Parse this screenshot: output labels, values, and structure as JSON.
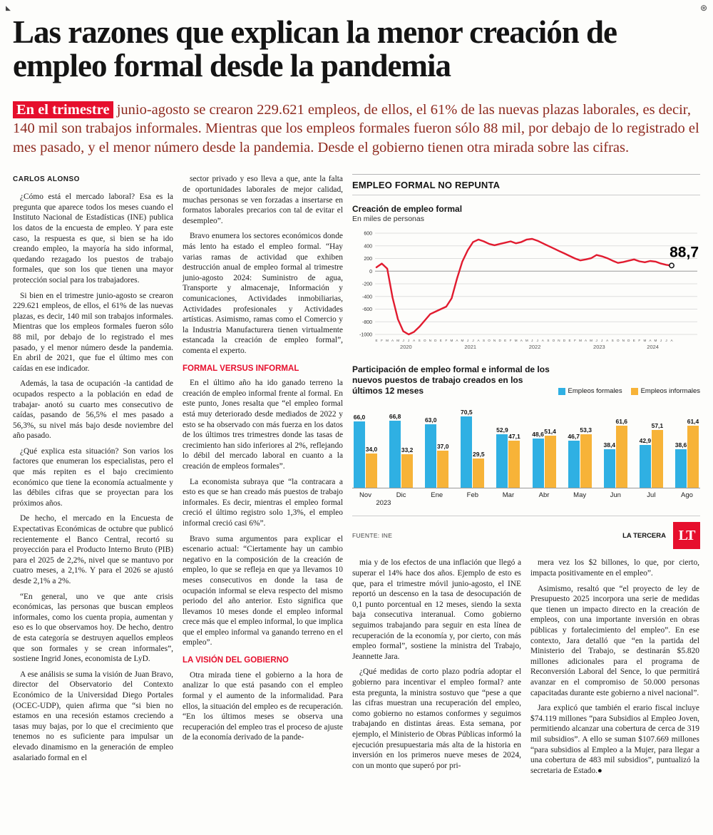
{
  "marks": {
    "left": "◣",
    "right": "⊛"
  },
  "headline": "Las razones que explican la menor creación de empleo formal desde la pandemia",
  "lead": {
    "highlight": "En el trimestre",
    "rest": " junio-agosto se crearon 229.621 empleos, de ellos, el 61% de las nuevas plazas laborales, es decir, 140 mil son trabajos informales. Mientras que los empleos formales fueron sólo 88 mil, por debajo de lo registrado el mes pasado, y el menor número desde la pandemia.  Desde el gobierno tienen otra mirada sobre las cifras."
  },
  "byline": "CARLOS ALONSO",
  "article": {
    "col1": [
      {
        "t": "p",
        "x": "¿Cómo está el mercado laboral? Esa es la pregunta que aparece todos los meses cuando el Instituto Nacional de Estadísticas (INE) publica los datos de la encuesta de empleo. Y para este caso, la respuesta es que, si bien se ha ido creando empleo, la mayoría ha sido informal, quedando rezagado los puestos de trabajo formales, que son los que tienen una mayor protección social para los trabajadores."
      },
      {
        "t": "p",
        "x": "Si bien en el trimestre junio-agosto se crearon 229.621 empleos, de ellos, el 61% de las nuevas plazas, es decir, 140 mil son trabajos informales. Mientras que los empleos formales fueron sólo 88 mil, por debajo de lo registrado el mes pasado, y el menor número desde la pandemia. En abril de 2021, que fue el último mes con caídas en ese indicador."
      },
      {
        "t": "p",
        "x": "Además, la tasa de ocupación -la cantidad de ocupados respecto a la población en edad de trabajar- anotó su cuarto mes consecutivo de caídas, pasando de 56,5% el mes pasado a 56,3%, su nivel más bajo desde noviembre del año pasado."
      },
      {
        "t": "p",
        "x": "¿Qué explica esta situación? Son varios los factores que enumeran los especialistas, pero el que más repiten es el bajo crecimiento económico que tiene la economía actualmente y las débiles cifras que se proyectan para los próximos años."
      },
      {
        "t": "p",
        "x": "De hecho, el mercado en la Encuesta de Expectativas Económicas de octubre que publicó recientemente el Banco Central, recortó su proyección para el Producto Interno Bruto (PIB) para el 2025 de 2,2%, nivel que se mantuvo por cuatro meses, a 2,1%. Y para el 2026 se ajustó desde 2,1% a 2%."
      },
      {
        "t": "p",
        "x": "“En general, uno ve que ante crisis económicas, las personas que buscan empleos informales, como los cuenta propia, aumentan y eso es lo que observamos hoy. De hecho, dentro de esta categoría se destruyen aquellos empleos que son formales y se crean informales”, sostiene Ingrid Jones, economista de LyD."
      },
      {
        "t": "p",
        "x": "A ese análisis se suma la visión de Juan Bravo, director del Observatorio del Contexto Económico de la Universidad Diego Portales (OCEC-UDP), quien afirma que “si bien no estamos en una recesión estamos creciendo a tasas muy bajas, por lo que el crecimiento que tenemos no es suficiente para impulsar un elevado dinamismo en la generación de empleo asalariado formal en el"
      }
    ],
    "col2": [
      {
        "t": "p",
        "x": "sector privado y eso lleva a que, ante la falta de oportunidades laborales de mejor calidad, muchas personas se ven forzadas a insertarse en formatos laborales precarios con tal de evitar el desempleo”."
      },
      {
        "t": "p",
        "x": "Bravo enumera los sectores económicos donde más lento ha estado el empleo formal. “Hay varias ramas de actividad que exhiben destrucción anual de empleo formal al trimestre junio-agosto 2024: Suministro de agua, Transporte y almacenaje, Información y comunicaciones, Actividades inmobiliarias, Actividades profesionales y Actividades artísticas. Asimismo, ramas como el Comercio y la Industria Manufacturera tienen virtualmente estancada la creación de empleo formal”, comenta el experto."
      },
      {
        "t": "h",
        "x": "FORMAL VERSUS INFORMAL"
      },
      {
        "t": "p",
        "x": "En el último año ha ido ganado terreno la creación de empleo informal frente al formal. En este punto, Jones resalta que “el empleo formal está muy deteriorado desde mediados de 2022 y esto se ha observado con más fuerza en los datos de los últimos tres trimestres donde las tasas de crecimiento han sido inferiores al 2%, reflejando lo débil del mercado laboral en cuanto a la creación de empleos formales”."
      },
      {
        "t": "p",
        "x": "La economista subraya que “la contracara a esto es que se han creado más puestos de trabajo informales. Es decir, mientras el empleo formal creció el último registro solo 1,3%, el empleo informal creció casi 6%”."
      },
      {
        "t": "p",
        "x": "Bravo suma argumentos para explicar el escenario actual: “Ciertamente hay un cambio negativo en la composición de la creación de empleo, lo que se refleja en que ya llevamos 10 meses consecutivos en donde la tasa de ocupación informal se eleva respecto del mismo periodo del año anterior. Esto significa que llevamos 10 meses donde el empleo informal crece más que el empleo informal, lo que implica que el empleo informal va ganando terreno en el empleo”."
      },
      {
        "t": "h",
        "x": "LA VISIÓN DEL GOBIERNO"
      },
      {
        "t": "p",
        "x": "Otra mirada tiene el gobierno a la hora de analizar lo que está pasando con el empleo formal y el aumento de la informalidad. Para ellos, la situación del empleo es de recuperación. “En los últimos meses se observa una recuperación del empleo tras el proceso de ajuste de la economía derivado de la pande-"
      }
    ],
    "col3": [
      {
        "t": "p",
        "x": "mia y de los efectos de una inflación que llegó a superar el 14% hace dos años. Ejemplo de esto es que, para el trimestre móvil junio-agosto, el INE reportó un descenso en la tasa de desocupación de 0,1 punto porcentual en 12 meses, siendo la sexta baja consecutiva interanual. Como gobierno seguimos trabajando para seguir en esta línea de recuperación de la economía y, por cierto, con más empleo formal”, sostiene la ministra del Trabajo, Jeannette Jara."
      },
      {
        "t": "p",
        "x": "¿Qué medidas de corto plazo podría adoptar el gobierno para incentivar el empleo formal? ante esta pregunta, la ministra sostuvo que “pese a que las cifras muestran una recuperación del empleo, como gobierno no estamos conformes y seguimos trabajando en distintas áreas. Esta semana, por ejemplo, el Ministerio de Obras Públicas informó la ejecución presupuestaria más alta de la historia en inversión en los primeros nueve meses de 2024, con un monto que superó por pri-"
      }
    ],
    "col4": [
      {
        "t": "p",
        "x": "mera vez los $2 billones, lo que, por cierto, impacta positivamente en el empleo”."
      },
      {
        "t": "p",
        "x": "Asimismo, resaltó que “el proyecto de ley de Presupuesto 2025 incorpora una serie de medidas que tienen un impacto directo en la creación de empleos, con una importante inversión en obras públicas y fortalecimiento del empleo”. En ese contexto, Jara detalló que “en la partida del Ministerio del Trabajo, se destinarán $5.820 millones adicionales para el programa de Reconversión Laboral del Sence, lo que permitirá avanzar en el compromiso de 50.000 personas capacitadas durante este gobierno a nivel nacional”."
      },
      {
        "t": "p",
        "x": "Jara explicó que también el erario fiscal incluye $74.119 millones “para Subsidios al Empleo Joven, permitiendo alcanzar una cobertura de cerca de 319 mil subsidios”. A ello se suman $107.669 millones “para subsidios al Empleo a la Mujer, para llegar a una cobertura de 483 mil subsidios”, puntualizó la secretaria de Estado.●"
      }
    ]
  },
  "panel": {
    "section_title": "EMPLEO FORMAL NO REPUNTA",
    "footer": {
      "source": "FUENTE:  INE",
      "credit": "LA TERCERA",
      "logo": "LT"
    }
  },
  "chart_data": [
    {
      "type": "line",
      "title": "Creación de empleo formal",
      "subtitle": "En miles de personas",
      "line_color": "#e11b2f",
      "ylim": [
        -1000,
        600
      ],
      "yticks": [
        600,
        400,
        200,
        0,
        -200,
        -400,
        -600,
        -800,
        -1000
      ],
      "x_groups": [
        {
          "year": "2020",
          "months": "EFMAMJJASOND"
        },
        {
          "year": "2021",
          "months": "EFMAMJJASOND"
        },
        {
          "year": "2022",
          "months": "EFMAMJJASOND"
        },
        {
          "year": "2023",
          "months": "EFMAMJJASOND"
        },
        {
          "year": "2024",
          "months": "EFMAMJJA"
        }
      ],
      "values": [
        60,
        120,
        40,
        -420,
        -760,
        -950,
        -1000,
        -960,
        -880,
        -780,
        -680,
        -640,
        -600,
        -560,
        -430,
        -120,
        150,
        330,
        460,
        500,
        470,
        430,
        410,
        430,
        450,
        470,
        440,
        460,
        500,
        510,
        480,
        440,
        400,
        360,
        320,
        280,
        240,
        200,
        170,
        185,
        205,
        255,
        235,
        205,
        165,
        130,
        145,
        165,
        185,
        155,
        140,
        160,
        150,
        120,
        100,
        88.7
      ],
      "end_label": "88,7"
    },
    {
      "type": "bar",
      "title": "Participación de empleo formal e informal de los nuevos puestos de trabajo creados en los últimos 12 meses",
      "categories": [
        "Nov",
        "Dic",
        "Ene",
        "Feb",
        "Mar",
        "Abr",
        "May",
        "Jun",
        "Jul",
        "Ago"
      ],
      "year_labels": [
        {
          "text": "2023",
          "left_pct": 9
        }
      ],
      "ylim": [
        0,
        75
      ],
      "series": [
        {
          "name": "Empleos formales",
          "color": "#2fb0e3",
          "values": [
            66.0,
            66.8,
            63.0,
            70.5,
            52.9,
            48.6,
            46.7,
            38.4,
            42.9,
            38.6
          ],
          "labels": [
            "66,0",
            "66,8",
            "63,0",
            "70,5",
            "52,9",
            "48,6",
            "46,7",
            "38,4",
            "42,9",
            "38,6"
          ]
        },
        {
          "name": "Empleos informales",
          "color": "#f7b338",
          "values": [
            34.0,
            33.2,
            37.0,
            29.5,
            47.1,
            51.4,
            53.3,
            61.6,
            57.1,
            61.4
          ],
          "labels": [
            "34,0",
            "33,2",
            "37,0",
            "29,5",
            "47,1",
            "51,4",
            "53,3",
            "61,6",
            "57,1",
            "61,4"
          ]
        }
      ]
    }
  ]
}
